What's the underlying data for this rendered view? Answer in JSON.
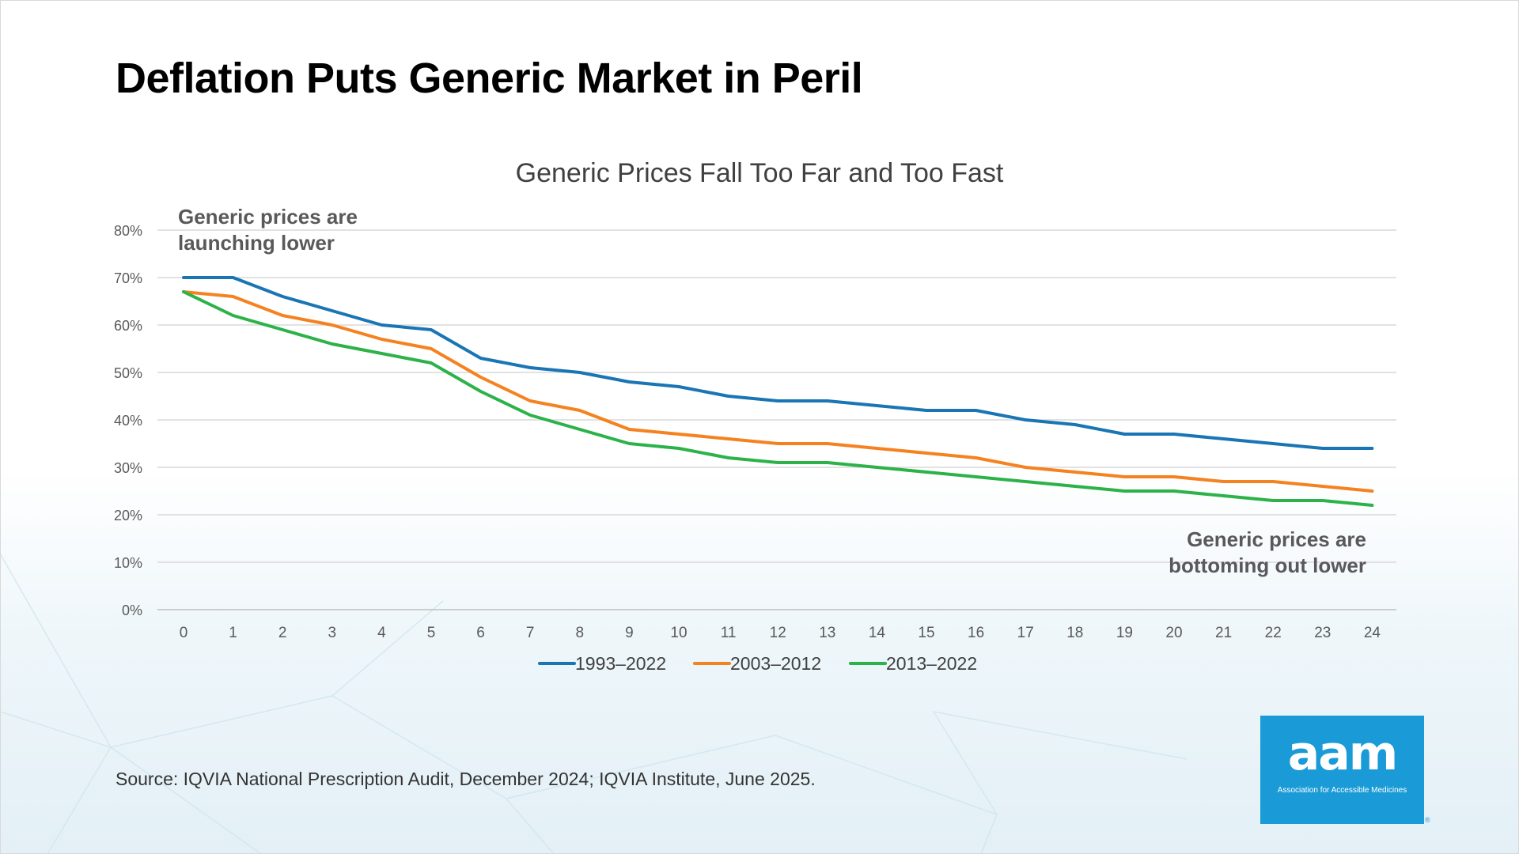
{
  "slide": {
    "title": "Deflation Puts Generic Market in Peril",
    "source": "Source: IQVIA National Prescription Audit, December 2024; IQVIA Institute, June 2025."
  },
  "logo": {
    "word": "aam",
    "subtitle": "Association for Accessible Medicines",
    "mark": "®",
    "color": "#1a9bd7"
  },
  "chart_data": {
    "type": "line",
    "title": "Generic Prices Fall Too Far and Too Fast",
    "xlabel": "",
    "ylabel": "",
    "x": [
      0,
      1,
      2,
      3,
      4,
      5,
      6,
      7,
      8,
      9,
      10,
      11,
      12,
      13,
      14,
      15,
      16,
      17,
      18,
      19,
      20,
      21,
      22,
      23,
      24
    ],
    "y_ticks": [
      "0%",
      "10%",
      "20%",
      "30%",
      "40%",
      "50%",
      "60%",
      "70%",
      "80%"
    ],
    "ylim": [
      0,
      80
    ],
    "grid": true,
    "legend_position": "bottom",
    "series": [
      {
        "name": "1993–2022",
        "color": "#1a75b4",
        "values": [
          70,
          70,
          66,
          63,
          60,
          59,
          53,
          51,
          50,
          48,
          47,
          45,
          44,
          44,
          43,
          42,
          42,
          40,
          39,
          37,
          37,
          36,
          35,
          34,
          34
        ]
      },
      {
        "name": "2003–2012",
        "color": "#f58220",
        "values": [
          67,
          66,
          62,
          60,
          57,
          55,
          49,
          44,
          42,
          38,
          37,
          36,
          35,
          35,
          34,
          33,
          32,
          30,
          29,
          28,
          28,
          27,
          27,
          26,
          25
        ]
      },
      {
        "name": "2013–2022",
        "color": "#2db24a",
        "values": [
          67,
          62,
          59,
          56,
          54,
          52,
          46,
          41,
          38,
          35,
          34,
          32,
          31,
          31,
          30,
          29,
          28,
          27,
          26,
          25,
          25,
          24,
          23,
          23,
          22
        ]
      }
    ],
    "annotations": [
      {
        "lines": [
          "Generic prices are",
          "launching lower"
        ],
        "align": "left"
      },
      {
        "lines": [
          "Generic prices are",
          "bottoming out lower"
        ],
        "align": "right"
      }
    ]
  }
}
